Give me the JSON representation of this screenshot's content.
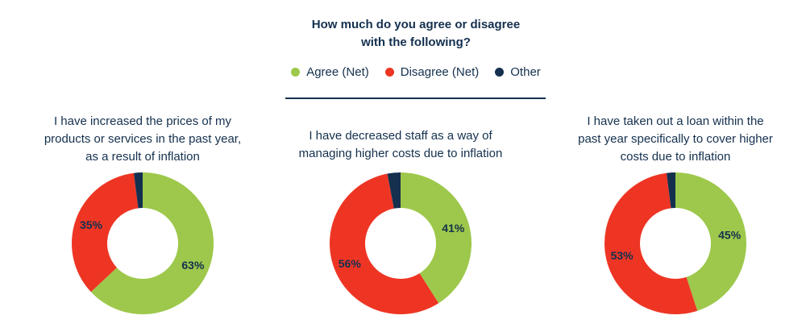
{
  "title_lines": [
    "How much do you agree or disagree",
    "with the following?"
  ],
  "legend": [
    {
      "label": "Agree (Net)",
      "color": "#9dc84b"
    },
    {
      "label": "Disagree (Net)",
      "color": "#ee3524"
    },
    {
      "label": "Other",
      "color": "#14304e"
    }
  ],
  "chart_data": [
    {
      "type": "pie",
      "title_lines": [
        "I have increased the prices of my",
        "products or services in the past year,",
        "as a result of inflation"
      ],
      "series": [
        {
          "name": "Agree (Net)",
          "value": 63,
          "label": "63%"
        },
        {
          "name": "Disagree (Net)",
          "value": 35,
          "label": "35%"
        },
        {
          "name": "Other",
          "value": 2,
          "label": ""
        }
      ]
    },
    {
      "type": "pie",
      "title_lines": [
        "I have decreased staff as a way of",
        "managing higher costs due to inflation"
      ],
      "series": [
        {
          "name": "Agree (Net)",
          "value": 41,
          "label": "41%"
        },
        {
          "name": "Disagree (Net)",
          "value": 56,
          "label": "56%"
        },
        {
          "name": "Other",
          "value": 3,
          "label": ""
        }
      ]
    },
    {
      "type": "pie",
      "title_lines": [
        "I have taken out a loan within the",
        "past year specifically to cover higher",
        "costs due to inflation"
      ],
      "series": [
        {
          "name": "Agree (Net)",
          "value": 45,
          "label": "45%"
        },
        {
          "name": "Disagree (Net)",
          "value": 53,
          "label": "53%"
        },
        {
          "name": "Other",
          "value": 2,
          "label": ""
        }
      ]
    }
  ]
}
